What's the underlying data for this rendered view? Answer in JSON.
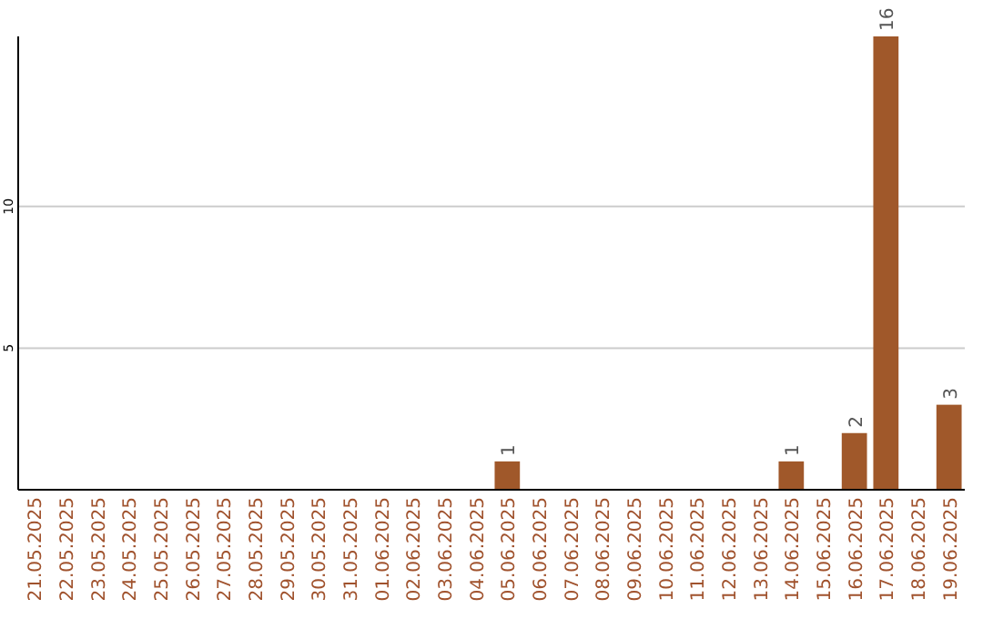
{
  "chart_data": {
    "type": "bar",
    "categories": [
      "21.05.2025",
      "22.05.2025",
      "23.05.2025",
      "24.05.2025",
      "25.05.2025",
      "26.05.2025",
      "27.05.2025",
      "28.05.2025",
      "29.05.2025",
      "30.05.2025",
      "31.05.2025",
      "01.06.2025",
      "02.06.2025",
      "03.06.2025",
      "04.06.2025",
      "05.06.2025",
      "06.06.2025",
      "07.06.2025",
      "08.06.2025",
      "09.06.2025",
      "10.06.2025",
      "11.06.2025",
      "12.06.2025",
      "13.06.2025",
      "14.06.2025",
      "15.06.2025",
      "16.06.2025",
      "17.06.2025",
      "18.06.2025",
      "19.06.2025"
    ],
    "values": [
      0,
      0,
      0,
      0,
      0,
      0,
      0,
      0,
      0,
      0,
      0,
      0,
      0,
      0,
      0,
      1,
      0,
      0,
      0,
      0,
      0,
      0,
      0,
      0,
      1,
      0,
      2,
      16,
      0,
      3
    ],
    "value_labels": [
      null,
      null,
      null,
      null,
      null,
      null,
      null,
      null,
      null,
      null,
      null,
      null,
      null,
      null,
      null,
      "1",
      null,
      null,
      null,
      null,
      null,
      null,
      null,
      null,
      "1",
      null,
      "2",
      "16",
      null,
      "3"
    ],
    "color": "#a0582a",
    "ylim": [
      0,
      16
    ],
    "yticks": [
      5,
      10
    ],
    "grid": "y"
  }
}
